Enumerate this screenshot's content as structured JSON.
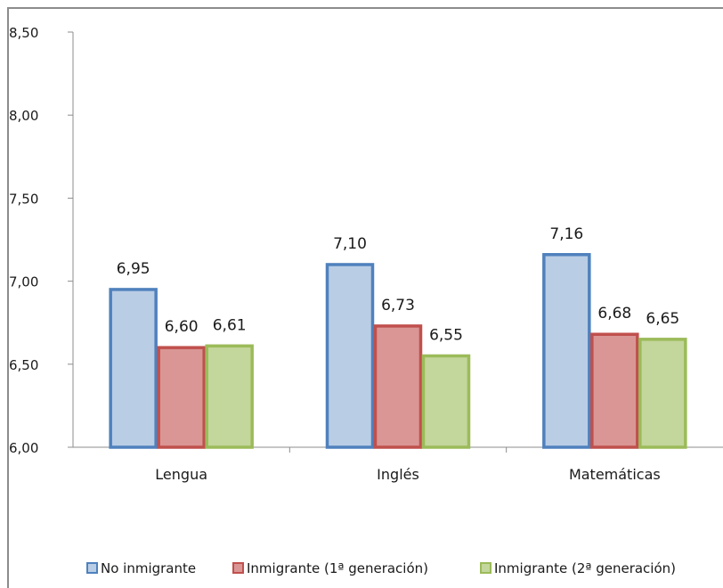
{
  "chart_data": {
    "type": "bar",
    "categories": [
      "Lengua",
      "Inglés",
      "Matemáticas"
    ],
    "series": [
      {
        "name": "No inmigrante",
        "values": [
          6.95,
          7.1,
          7.16
        ],
        "labels": [
          "6,95",
          "7,10",
          "7,16"
        ],
        "fill": "#b9cde5",
        "stroke": "#4f81bd"
      },
      {
        "name": "Inmigrante (1ª generación)",
        "values": [
          6.6,
          6.73,
          6.68
        ],
        "labels": [
          "6,60",
          "6,73",
          "6,68"
        ],
        "fill": "#d99694",
        "stroke": "#c0504d"
      },
      {
        "name": "Inmigrante (2ª generación)",
        "values": [
          6.61,
          6.55,
          6.65
        ],
        "labels": [
          "6,61",
          "6,55",
          "6,65"
        ],
        "fill": "#c3d69b",
        "stroke": "#9bbb59"
      }
    ],
    "ylim": [
      6.0,
      8.5
    ],
    "yticks": [
      6.0,
      6.5,
      7.0,
      7.5,
      8.0,
      8.5
    ],
    "ytick_labels": [
      "6,00",
      "6,50",
      "7,00",
      "7,50",
      "8,00",
      "8,50"
    ],
    "grid": false,
    "legend_position": "bottom"
  }
}
